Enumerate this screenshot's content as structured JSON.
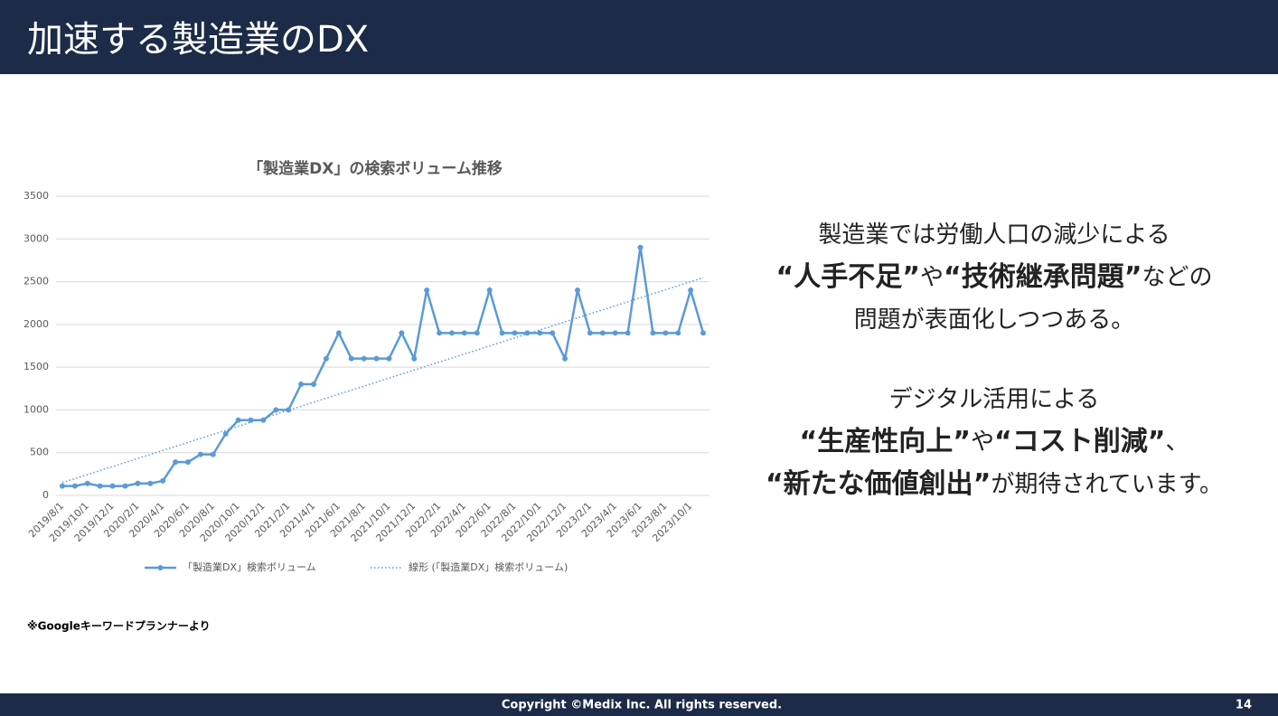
{
  "header": {
    "title": "加速する製造業のDX"
  },
  "chart_data": {
    "type": "line",
    "title": "「製造業DX」の検索ボリューム推移",
    "categories": [
      "2019/8/1",
      null,
      "2019/10/1",
      null,
      "2019/12/1",
      null,
      "2020/2/1",
      null,
      "2020/4/1",
      null,
      "2020/6/1",
      null,
      "2020/8/1",
      null,
      "2020/10/1",
      null,
      "2020/12/1",
      null,
      "2021/2/1",
      null,
      "2021/4/1",
      null,
      "2021/6/1",
      null,
      "2021/8/1",
      null,
      "2021/10/1",
      null,
      "2021/12/1",
      null,
      "2022/2/1",
      null,
      "2022/4/1",
      null,
      "2022/6/1",
      null,
      "2022/8/1",
      null,
      "2022/10/1",
      null,
      "2022/12/1",
      null,
      "2023/2/1",
      null,
      "2023/4/1",
      null,
      "2023/6/1",
      null,
      "2023/8/1",
      null,
      "2023/10/1",
      null
    ],
    "series": [
      {
        "name": "「製造業DX」検索ボリューム",
        "color": "#5b9bd5",
        "style": "solid",
        "markers": true,
        "values": [
          110,
          110,
          140,
          110,
          110,
          110,
          140,
          140,
          170,
          390,
          390,
          480,
          480,
          720,
          880,
          880,
          880,
          1000,
          1000,
          1300,
          1300,
          1600,
          1900,
          1600,
          1600,
          1600,
          1600,
          1900,
          1600,
          2400,
          1900,
          1900,
          1900,
          1900,
          2400,
          1900,
          1900,
          1900,
          1900,
          1900,
          1600,
          2400,
          1900,
          1900,
          1900,
          1900,
          2900,
          1900,
          1900,
          1900,
          2400,
          1900
        ]
      },
      {
        "name": "線形 (「製造業DX」検索ボリューム)",
        "color": "#5b9bd5",
        "style": "dotted",
        "markers": false,
        "values": [
          150,
          197,
          244,
          291,
          338,
          385,
          432,
          479,
          526,
          573,
          620,
          667,
          714,
          761,
          808,
          855,
          902,
          949,
          996,
          1043,
          1090,
          1137,
          1184,
          1231,
          1278,
          1325,
          1372,
          1419,
          1466,
          1513,
          1560,
          1607,
          1654,
          1701,
          1748,
          1795,
          1842,
          1889,
          1936,
          1983,
          2030,
          2077,
          2124,
          2171,
          2218,
          2265,
          2312,
          2359,
          2406,
          2453,
          2500,
          2547
        ]
      }
    ],
    "ylim": [
      0,
      3500
    ],
    "yticks": [
      0,
      500,
      1000,
      1500,
      2000,
      2500,
      3000,
      3500
    ],
    "grid": true,
    "legend": "bottom"
  },
  "note": "※Googleキーワードプランナーより",
  "message": {
    "paragraphs": [
      [
        [
          {
            "text": "製造業では労働人口の減少による",
            "bold": false
          }
        ],
        [
          {
            "text": "“人手不足”",
            "bold": true
          },
          {
            "text": "や",
            "bold": false
          },
          {
            "text": "“技術継承問題”",
            "bold": true
          },
          {
            "text": "などの",
            "bold": false
          }
        ],
        [
          {
            "text": "問題が表面化しつつある。",
            "bold": false
          }
        ]
      ],
      [
        [
          {
            "text": "デジタル活用による",
            "bold": false
          }
        ],
        [
          {
            "text": "“生産性向上”",
            "bold": true
          },
          {
            "text": "や",
            "bold": false
          },
          {
            "text": "“コスト削減”",
            "bold": true
          },
          {
            "text": "、",
            "bold": false
          }
        ],
        [
          {
            "text": "“新たな価値創出”",
            "bold": true
          },
          {
            "text": "が期待されています。",
            "bold": false
          }
        ]
      ]
    ]
  },
  "footer": {
    "copyright": "Copyright ©Medix Inc. All rights reserved.",
    "page": "14"
  }
}
